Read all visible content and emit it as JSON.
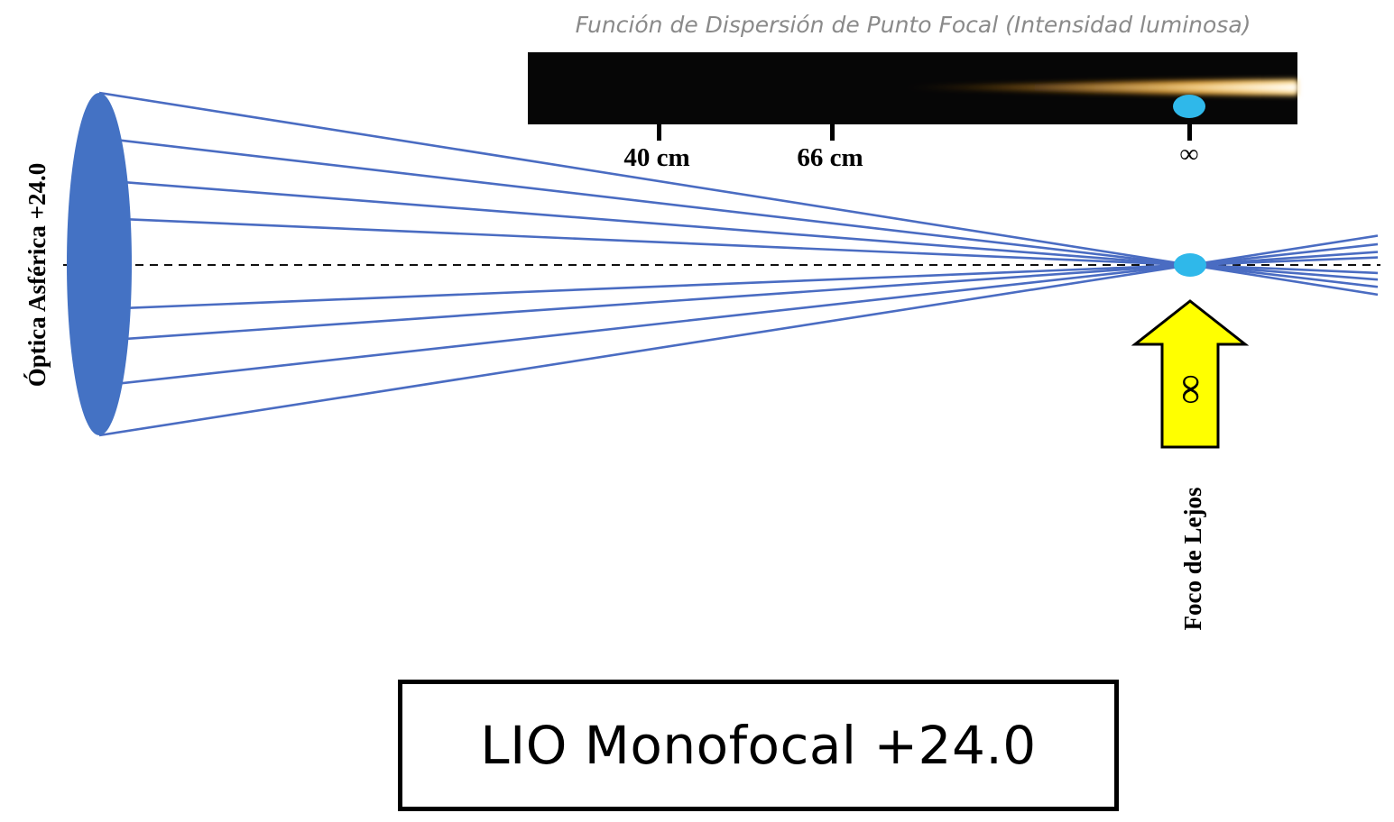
{
  "psf": {
    "title": "Función de Dispersión de Punto Focal (Intensidad luminosa)",
    "ticks": [
      "40 cm",
      "66 cm",
      "∞"
    ]
  },
  "lens": {
    "label": "Óptica Asférica +24.0"
  },
  "focus": {
    "arrow_symbol": "∞",
    "label": "Foco de Lejos"
  },
  "caption": {
    "title": "LIO Monofocal +24.0"
  },
  "colors": {
    "lens": "#4472c4",
    "rays": "#4a6cc2",
    "focal_point": "#2fb8ea",
    "arrow": "#ffff00",
    "glow": "#ffa020",
    "strip": "#060606"
  }
}
